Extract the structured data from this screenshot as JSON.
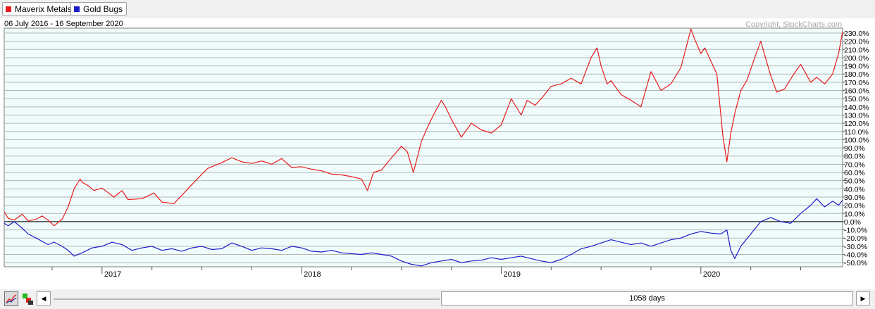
{
  "legend": [
    {
      "label": "Maverix Metals",
      "color": "#e81c1c"
    },
    {
      "label": "Gold Bugs",
      "color": "#1c1cc8"
    }
  ],
  "date_range": "06 July 2016 - 16 September 2020",
  "copyright": "Copyright, StockCharts.com",
  "bottom": {
    "period": "1058 days",
    "prev_label": "◀",
    "next_label": "▶",
    "tools": [
      "line-chart-icon",
      "color-squares-icon"
    ]
  },
  "chart_data": {
    "type": "line",
    "y_unit": "percent change",
    "ylim": [
      -55,
      236
    ],
    "xlim": [
      2016.51,
      2020.71
    ],
    "y_ticks": [
      -50,
      -40,
      -30,
      -20,
      -10,
      0,
      10,
      20,
      30,
      40,
      50,
      60,
      70,
      80,
      90,
      100,
      110,
      120,
      130,
      140,
      150,
      160,
      170,
      180,
      190,
      200,
      210,
      220,
      230
    ],
    "y_tick_labels": [
      "-50.0%",
      "-40.0%",
      "-30.0%",
      "-20.0%",
      "-10.0%",
      "0.0%",
      "10.0%",
      "20.0%",
      "30.0%",
      "40.0%",
      "50.0%",
      "60.0%",
      "70.0%",
      "80.0%",
      "90.0%",
      "100.0%",
      "110.0%",
      "120.0%",
      "130.0%",
      "140.0%",
      "150.0%",
      "160.0%",
      "170.0%",
      "180.0%",
      "190.0%",
      "200.0%",
      "210.0%",
      "220.0%",
      "230.0%"
    ],
    "x_ticks": [
      2017,
      2018,
      2019,
      2020
    ],
    "x_tick_labels": [
      "2017",
      "2018",
      "2019",
      "2020"
    ],
    "grid": true,
    "legend_position": "top-left",
    "series": [
      {
        "name": "Maverix Metals",
        "color": "#e81c1c",
        "x": [
          2016.51,
          2016.53,
          2016.56,
          2016.6,
          2016.63,
          2016.67,
          2016.7,
          2016.73,
          2016.76,
          2016.8,
          2016.83,
          2016.86,
          2016.89,
          2016.9,
          2016.93,
          2016.96,
          2017.0,
          2017.06,
          2017.1,
          2017.13,
          2017.2,
          2017.26,
          2017.3,
          2017.36,
          2017.43,
          2017.5,
          2017.53,
          2017.6,
          2017.65,
          2017.7,
          2017.75,
          2017.8,
          2017.85,
          2017.9,
          2017.95,
          2018.0,
          2018.05,
          2018.1,
          2018.15,
          2018.2,
          2018.25,
          2018.3,
          2018.33,
          2018.36,
          2018.4,
          2018.45,
          2018.5,
          2018.53,
          2018.56,
          2018.6,
          2018.63,
          2018.66,
          2018.7,
          2018.72,
          2018.75,
          2018.8,
          2018.85,
          2018.9,
          2018.95,
          2019.0,
          2019.05,
          2019.1,
          2019.13,
          2019.17,
          2019.2,
          2019.25,
          2019.3,
          2019.35,
          2019.4,
          2019.45,
          2019.48,
          2019.5,
          2019.53,
          2019.55,
          2019.6,
          2019.65,
          2019.7,
          2019.75,
          2019.8,
          2019.85,
          2019.9,
          2019.95,
          2019.97,
          2020.0,
          2020.02,
          2020.05,
          2020.08,
          2020.11,
          2020.13,
          2020.15,
          2020.17,
          2020.2,
          2020.23,
          2020.27,
          2020.3,
          2020.35,
          2020.38,
          2020.42,
          2020.46,
          2020.5,
          2020.55,
          2020.58,
          2020.62,
          2020.66,
          2020.69,
          2020.71
        ],
        "y": [
          12,
          4,
          2,
          9,
          1,
          3,
          7,
          2,
          -5,
          3,
          18,
          40,
          52,
          48,
          44,
          38,
          41,
          30,
          38,
          27,
          28,
          35,
          24,
          22,
          40,
          58,
          65,
          72,
          78,
          73,
          71,
          74,
          70,
          77,
          66,
          67,
          64,
          62,
          58,
          57,
          55,
          52,
          38,
          60,
          63,
          78,
          92,
          85,
          60,
          98,
          115,
          130,
          148,
          140,
          125,
          103,
          120,
          112,
          108,
          118,
          150,
          130,
          148,
          142,
          150,
          165,
          168,
          175,
          168,
          200,
          212,
          190,
          168,
          172,
          155,
          148,
          140,
          183,
          160,
          168,
          188,
          235,
          222,
          205,
          212,
          196,
          180,
          105,
          73,
          108,
          132,
          160,
          172,
          200,
          220,
          178,
          158,
          162,
          178,
          192,
          170,
          176,
          168,
          180,
          205,
          232
        ]
      },
      {
        "name": "Gold Bugs",
        "color": "#1c1cc8",
        "x": [
          2016.51,
          2016.53,
          2016.56,
          2016.6,
          2016.63,
          2016.67,
          2016.7,
          2016.73,
          2016.76,
          2016.8,
          2016.83,
          2016.86,
          2016.9,
          2016.95,
          2017.0,
          2017.05,
          2017.1,
          2017.15,
          2017.2,
          2017.25,
          2017.3,
          2017.35,
          2017.4,
          2017.45,
          2017.5,
          2017.55,
          2017.6,
          2017.65,
          2017.7,
          2017.75,
          2017.8,
          2017.85,
          2017.9,
          2017.95,
          2018.0,
          2018.05,
          2018.1,
          2018.15,
          2018.2,
          2018.25,
          2018.3,
          2018.35,
          2018.4,
          2018.45,
          2018.5,
          2018.55,
          2018.6,
          2018.65,
          2018.7,
          2018.75,
          2018.8,
          2018.85,
          2018.9,
          2018.95,
          2019.0,
          2019.05,
          2019.1,
          2019.15,
          2019.2,
          2019.25,
          2019.3,
          2019.35,
          2019.4,
          2019.45,
          2019.5,
          2019.55,
          2019.6,
          2019.65,
          2019.7,
          2019.75,
          2019.8,
          2019.85,
          2019.9,
          2019.95,
          2020.0,
          2020.05,
          2020.1,
          2020.13,
          2020.15,
          2020.17,
          2020.2,
          2020.25,
          2020.3,
          2020.35,
          2020.4,
          2020.45,
          2020.5,
          2020.55,
          2020.58,
          2020.62,
          2020.66,
          2020.69,
          2020.71
        ],
        "y": [
          -2,
          -5,
          0,
          -8,
          -15,
          -20,
          -24,
          -28,
          -25,
          -30,
          -35,
          -42,
          -38,
          -32,
          -30,
          -25,
          -28,
          -35,
          -32,
          -30,
          -35,
          -33,
          -36,
          -32,
          -30,
          -34,
          -33,
          -26,
          -30,
          -35,
          -32,
          -33,
          -35,
          -30,
          -32,
          -36,
          -37,
          -35,
          -38,
          -39,
          -40,
          -38,
          -40,
          -42,
          -48,
          -52,
          -54,
          -50,
          -48,
          -46,
          -50,
          -48,
          -47,
          -44,
          -46,
          -44,
          -42,
          -45,
          -48,
          -50,
          -46,
          -40,
          -33,
          -30,
          -26,
          -22,
          -25,
          -28,
          -26,
          -30,
          -26,
          -22,
          -20,
          -15,
          -12,
          -14,
          -15,
          -10,
          -35,
          -45,
          -30,
          -15,
          0,
          5,
          0,
          -2,
          10,
          20,
          28,
          18,
          25,
          20,
          26
        ]
      }
    ]
  }
}
